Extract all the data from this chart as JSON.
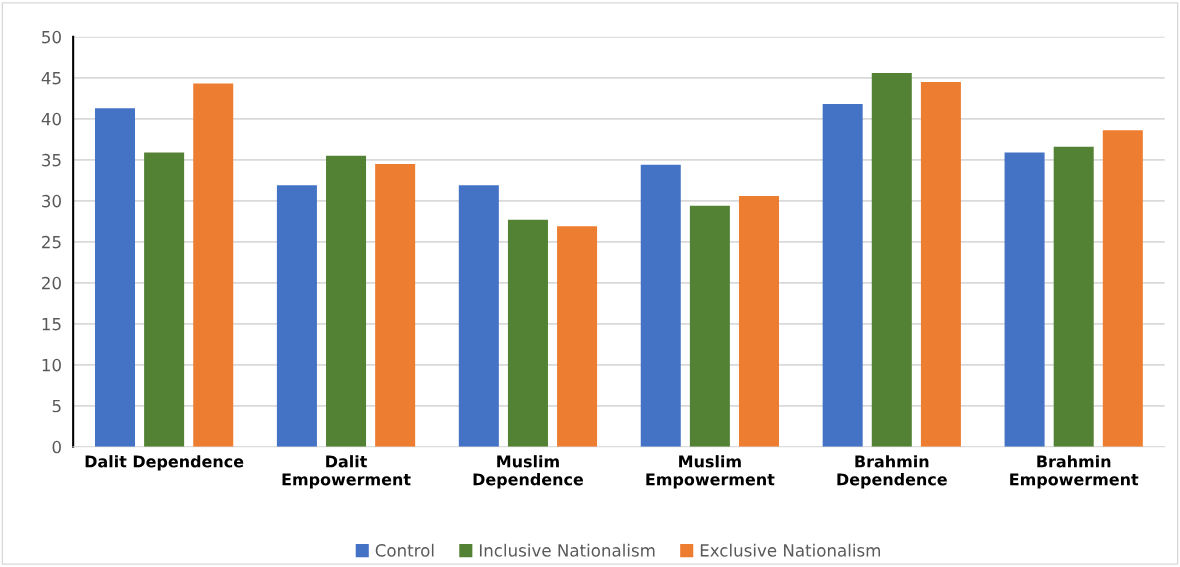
{
  "chart_data": {
    "type": "bar",
    "categories": [
      "Dalit Dependence",
      "Dalit\nEmpowerment",
      "Muslim\nDependence",
      "Muslim\nEmpowerment",
      "Brahmin\nDependence",
      "Brahmin\nEmpowerment"
    ],
    "series": [
      {
        "name": "Control",
        "color": "#4472c4",
        "values": [
          41.3,
          31.9,
          31.9,
          34.4,
          41.8,
          35.9
        ]
      },
      {
        "name": "Inclusive Nationalism",
        "color": "#548235",
        "values": [
          35.9,
          35.5,
          27.7,
          29.4,
          45.6,
          36.6
        ]
      },
      {
        "name": "Exclusive Nationalism",
        "color": "#ed7d31",
        "values": [
          44.3,
          34.5,
          26.9,
          30.6,
          44.5,
          38.6
        ]
      }
    ],
    "ylim": [
      0,
      50
    ],
    "yticks": [
      0,
      5,
      10,
      15,
      20,
      25,
      30,
      35,
      40,
      45,
      50
    ],
    "grid": "y",
    "legend": "bottom"
  }
}
